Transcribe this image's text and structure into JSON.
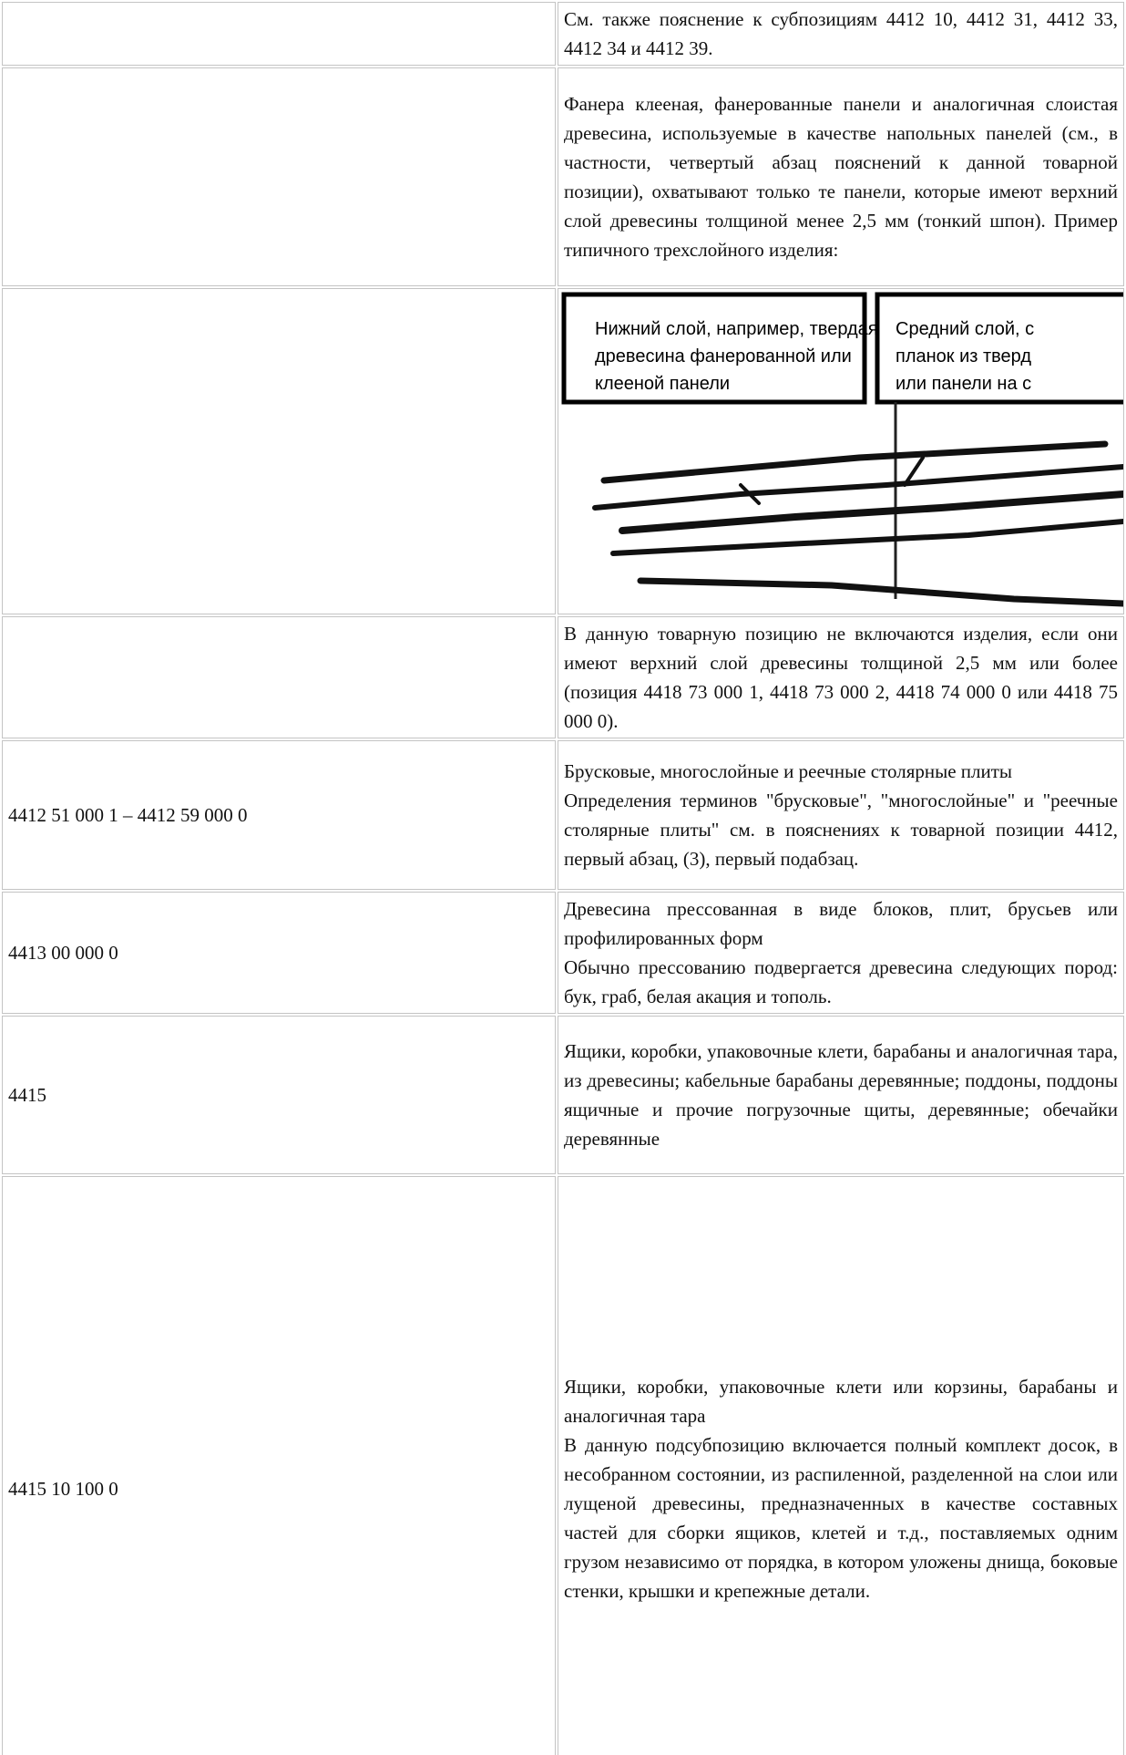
{
  "table": {
    "rows": [
      {
        "code": null,
        "text": [
          "См. также пояснение к субпозициям 4412 10, 4412 31, 4412 33, 4412 34 и 4412 39."
        ]
      },
      {
        "code": null,
        "text": [
          "Фанера клееная, фанерованные панели и аналогичная слоистая древесина, используемые в качестве напольных панелей (см., в частности, четвертый абзац пояснений к данной товарной позиции), охватывают только те панели, которые имеют верхний слой древесины толщиной менее 2,5 мм (тонкий шпон). Пример типичного трехслойного изделия:"
        ]
      },
      {
        "code": null,
        "figure": {
          "label_left": "Нижний слой, например, твердая древесина фанерованной или клееной панели",
          "label_right": "Средний слой, с планок из тверд или панели на с"
        }
      },
      {
        "code": null,
        "text": [
          "В данную товарную позицию не включаются изделия, если они имеют верхний слой древесины толщиной 2,5 мм или более (позиция 4418 73 000 1, 4418 73 000 2, 4418 74 000 0 или 4418 75 000 0)."
        ]
      },
      {
        "code": "4412 51 000 1 – 4412 59 000 0",
        "text": [
          "Брусковые, многослойные и реечные столярные плиты",
          "Определения терминов \"брусковые\", \"многослойные\" и \"реечные столярные плиты\" см. в пояснениях к товарной позиции 4412, первый абзац, (3), первый подабзац."
        ]
      },
      {
        "code": "4413 00 000 0",
        "text": [
          "Древесина прессованная в виде блоков, плит, брусьев или профилированных форм",
          "Обычно прессованию подвергается древесина следующих пород: бук, граб, белая акация и тополь."
        ]
      },
      {
        "code": "4415",
        "text": [
          "Ящики, коробки, упаковочные клети, барабаны и аналогичная тара, из древесины; кабельные барабаны деревянные; поддоны, поддоны ящичные и прочие погрузочные щиты, деревянные; обечайки деревянные"
        ]
      },
      {
        "code": "4415 10 100 0",
        "text": [
          "Ящики, коробки, упаковочные клети или корзины, барабаны и аналогичная тара",
          "В данную подсубпозицию включается полный комплект досок, в несобранном состоянии, из распиленной, разделенной на слои или лущеной древесины, предназначенных в качестве составных частей для сборки ящиков, клетей и т.д., поставляемых одним грузом независимо от порядка, в котором уложены днища, боковые стенки, крышки и крепежные детали."
        ]
      }
    ]
  }
}
